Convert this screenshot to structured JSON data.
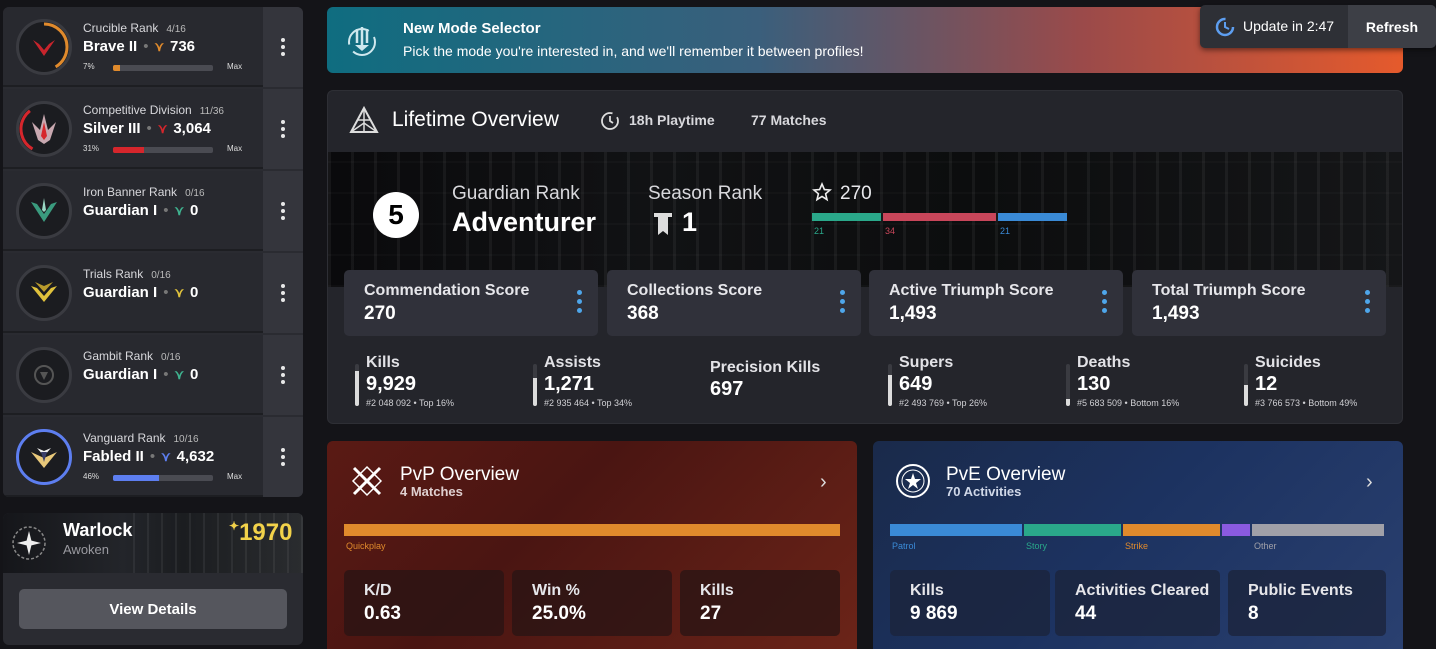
{
  "ranks": [
    {
      "title": "Crucible Rank",
      "count": "4/16",
      "name": "Brave II",
      "points": "736",
      "pct": "7%",
      "progress": 0.07,
      "max": "Max",
      "color": "#e08a2c"
    },
    {
      "title": "Competitive Division",
      "count": "11/36",
      "name": "Silver III",
      "points": "3,064",
      "pct": "31%",
      "progress": 0.31,
      "max": "Max",
      "color": "#d6262c"
    },
    {
      "title": "Iron Banner Rank",
      "count": "0/16",
      "name": "Guardian I",
      "points": "0",
      "color": "#3fb28f"
    },
    {
      "title": "Trials Rank",
      "count": "0/16",
      "name": "Guardian I",
      "points": "0",
      "color": "#e0c23c"
    },
    {
      "title": "Gambit Rank",
      "count": "0/16",
      "name": "Guardian I",
      "points": "0",
      "color": "#3fb28f"
    },
    {
      "title": "Vanguard Rank",
      "count": "10/16",
      "name": "Fabled II",
      "points": "4,632",
      "pct": "46%",
      "progress": 0.46,
      "max": "Max",
      "color": "#5d7ef0"
    }
  ],
  "character": {
    "class": "Warlock",
    "race": "Awoken",
    "power": "1970",
    "button": "View Details"
  },
  "banner": {
    "title": "New Mode Selector",
    "text": "Pick the mode you're interested in, and we'll remember it between profiles!"
  },
  "update": {
    "text": "Update in 2:47",
    "refresh": "Refresh"
  },
  "lifetime": {
    "title": "Lifetime Overview",
    "playtime": "18h Playtime",
    "matches": "77 Matches",
    "guardian_rank_num": "5",
    "guardian_rank_label": "Guardian Rank",
    "guardian_rank_name": "Adventurer",
    "season_rank_label": "Season Rank",
    "season_rank": "1",
    "commendations": "270",
    "commend_bars": [
      {
        "value": "21",
        "share": 21,
        "color": "#2aa88a"
      },
      {
        "value": "34",
        "share": 34,
        "color": "#c8465a"
      },
      {
        "value": "21",
        "share": 21,
        "color": "#3a8ad6"
      }
    ],
    "scores": [
      {
        "label": "Commendation Score",
        "value": "270"
      },
      {
        "label": "Collections Score",
        "value": "368"
      },
      {
        "label": "Active Triumph Score",
        "value": "1,493"
      },
      {
        "label": "Total Triumph Score",
        "value": "1,493"
      }
    ],
    "stats": [
      {
        "label": "Kills",
        "value": "9,929",
        "sub": "#2 048 092 • Top 16%",
        "fill": 0.84
      },
      {
        "label": "Assists",
        "value": "1,271",
        "sub": "#2 935 464 • Top 34%",
        "fill": 0.66
      },
      {
        "label": "Precision Kills",
        "value": "697",
        "sub": ""
      },
      {
        "label": "Supers",
        "value": "649",
        "sub": "#2 493 769 • Top 26%",
        "fill": 0.74
      },
      {
        "label": "Deaths",
        "value": "130",
        "sub": "#5 683 509 • Bottom 16%",
        "fill": 0.16
      },
      {
        "label": "Suicides",
        "value": "12",
        "sub": "#3 766 573 • Bottom 49%",
        "fill": 0.51
      }
    ]
  },
  "pvp": {
    "title": "PvP Overview",
    "subtitle": "4 Matches",
    "bar_label": "Quickplay",
    "bar_color": "#e08a2c",
    "stats": [
      {
        "label": "K/D",
        "value": "0.63"
      },
      {
        "label": "Win %",
        "value": "25.0%"
      },
      {
        "label": "Kills",
        "value": "27"
      }
    ]
  },
  "pve": {
    "title": "PvE Overview",
    "subtitle": "70 Activities",
    "bars": [
      {
        "label": "Patrol",
        "share": 27,
        "color": "#3a8ad6"
      },
      {
        "label": "Story",
        "share": 20,
        "color": "#2aa88a"
      },
      {
        "label": "Strike",
        "share": 20,
        "color": "#e08a2c"
      },
      {
        "label": "",
        "share": 6,
        "color": "#8a5ae0"
      },
      {
        "label": "Other",
        "share": 27,
        "color": "#a0a0a8"
      }
    ],
    "stats": [
      {
        "label": "Kills",
        "value": "9 869"
      },
      {
        "label": "Activities Cleared",
        "value": "44"
      },
      {
        "label": "Public Events",
        "value": "8"
      }
    ]
  }
}
